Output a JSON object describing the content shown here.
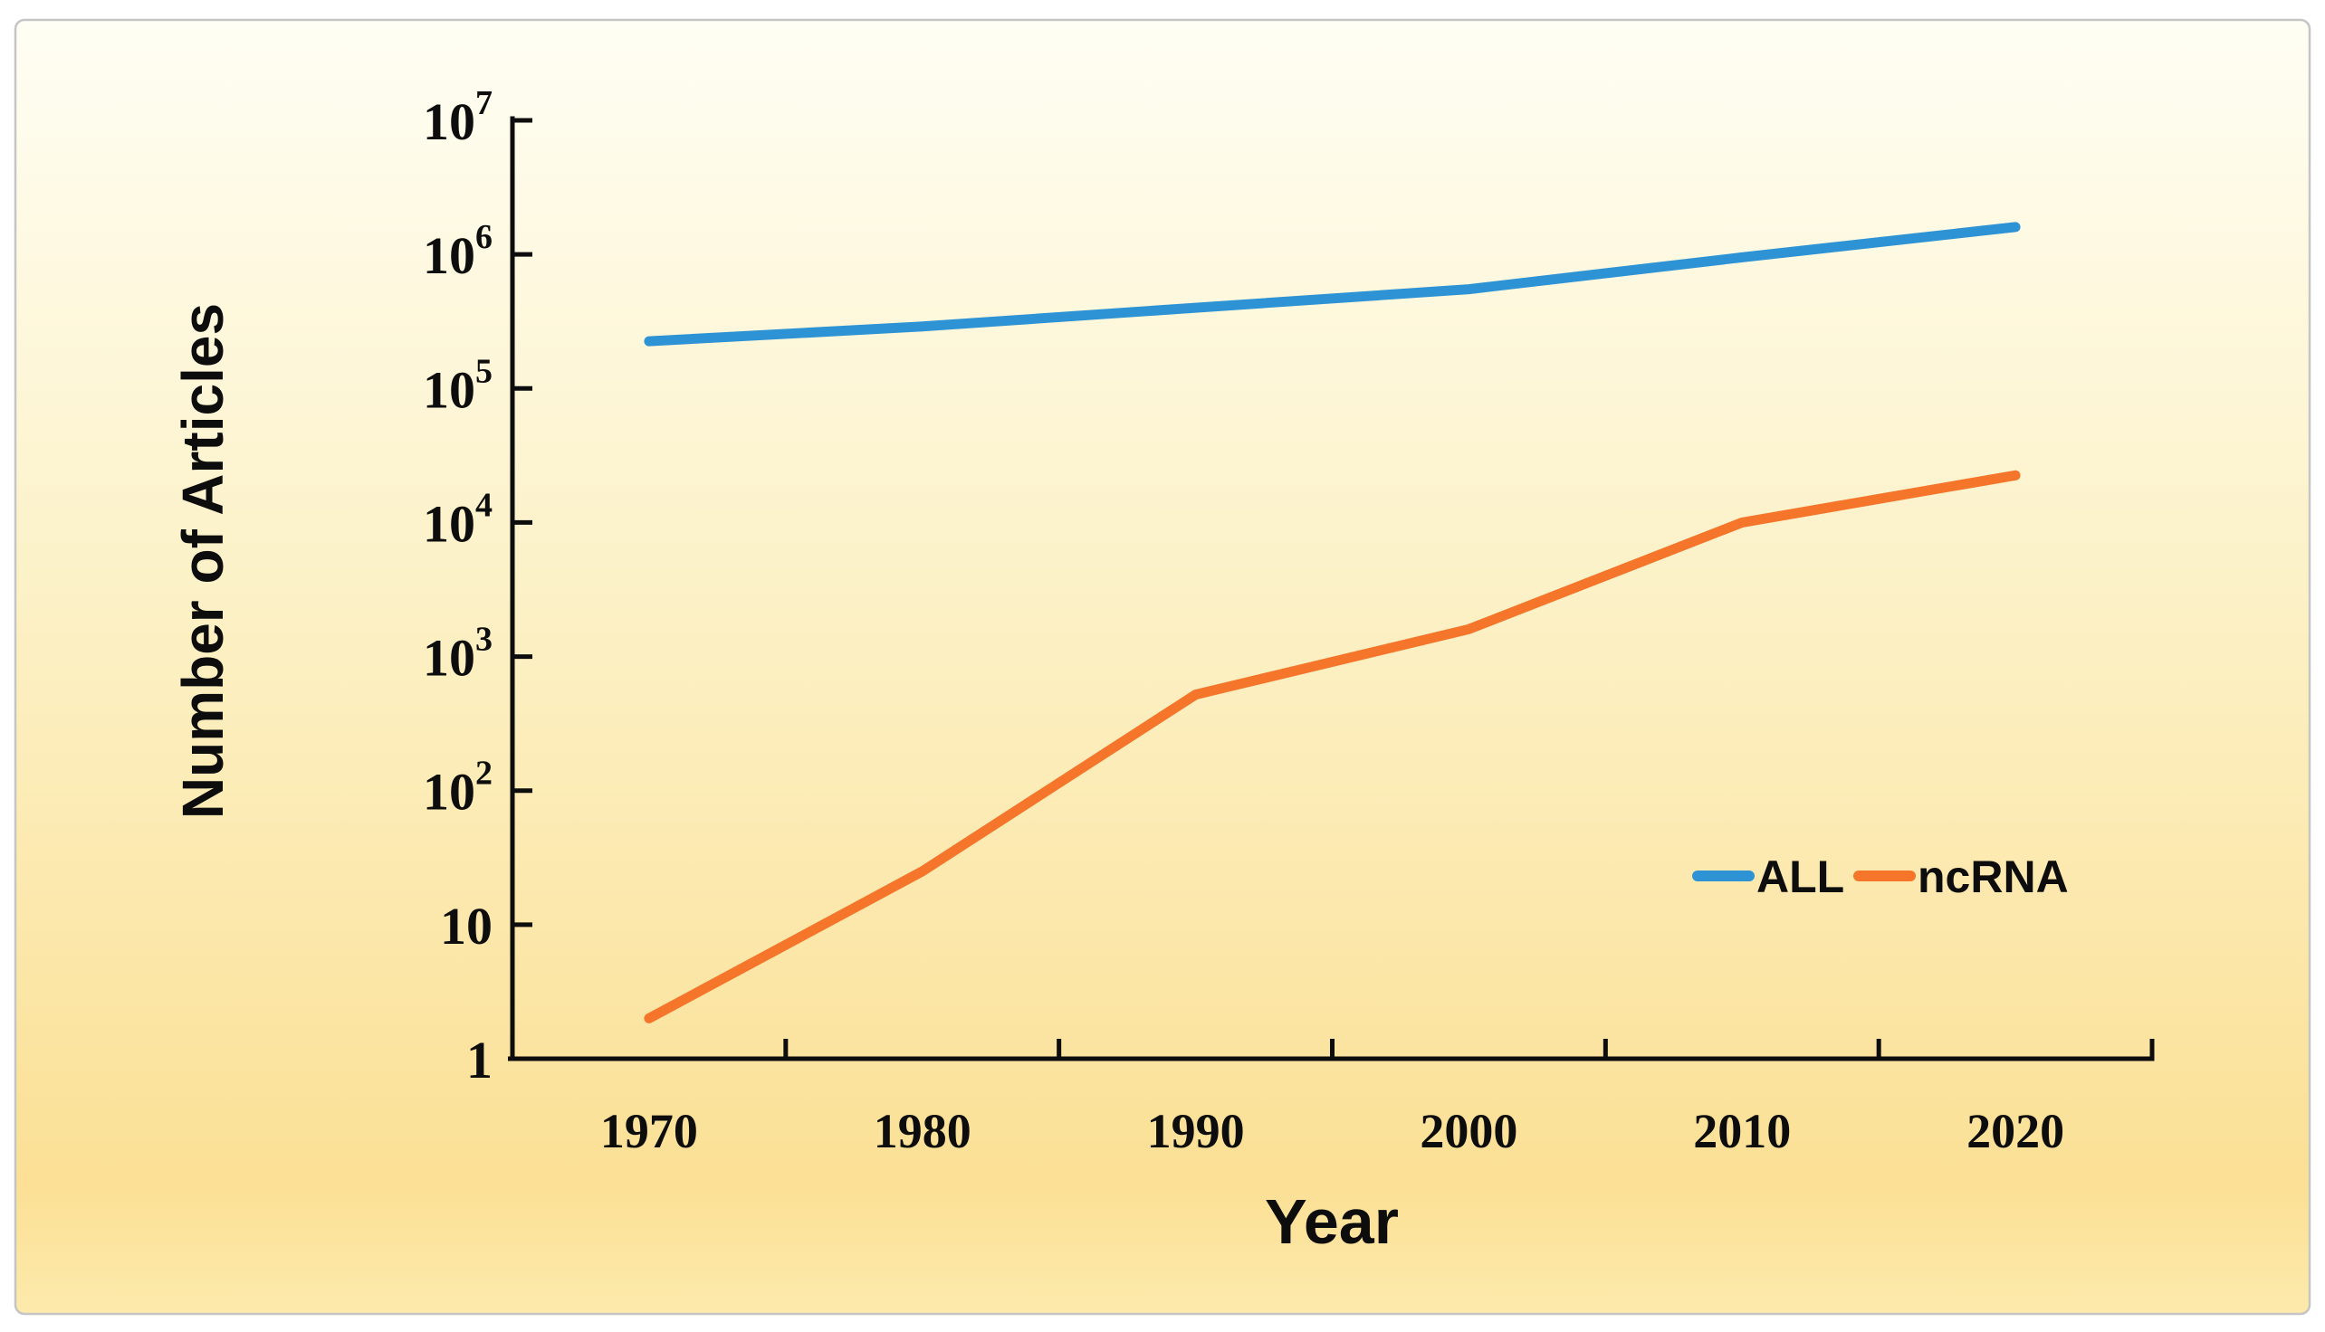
{
  "chart_data": {
    "type": "line",
    "title": "",
    "xlabel": "Year",
    "ylabel": "Number of Articles",
    "categories": [
      "1970",
      "1980",
      "1990",
      "2000",
      "2010",
      "2020"
    ],
    "series": [
      {
        "name": "ALL",
        "color": "#2E93D5",
        "values": [
          225000,
          290000,
          400000,
          550000,
          950000,
          1600000
        ]
      },
      {
        "name": "ncRNA",
        "color": "#F5752B",
        "values": [
          2,
          25,
          520,
          1600,
          10000,
          22500
        ]
      }
    ],
    "y_scale": "log",
    "ylim": [
      1,
      10000000
    ],
    "y_ticks": [
      "10^7",
      "10^6",
      "10^5",
      "10^4",
      "10^3",
      "10^2",
      "10",
      "1"
    ],
    "grid": false,
    "legend_position": "inside-right-middle",
    "legend": [
      "ALL",
      "ncRNA"
    ]
  },
  "colors": {
    "axis": "#0d0d0d",
    "text": "#0d0d0d",
    "panel_border": "#c5c5c5",
    "background_top": "#FFFEF4",
    "background_mid": "#FCF1C6",
    "background_deep": "#FBE095",
    "background_bottom": "#FDEAAC",
    "page_background": "#ffffff"
  }
}
